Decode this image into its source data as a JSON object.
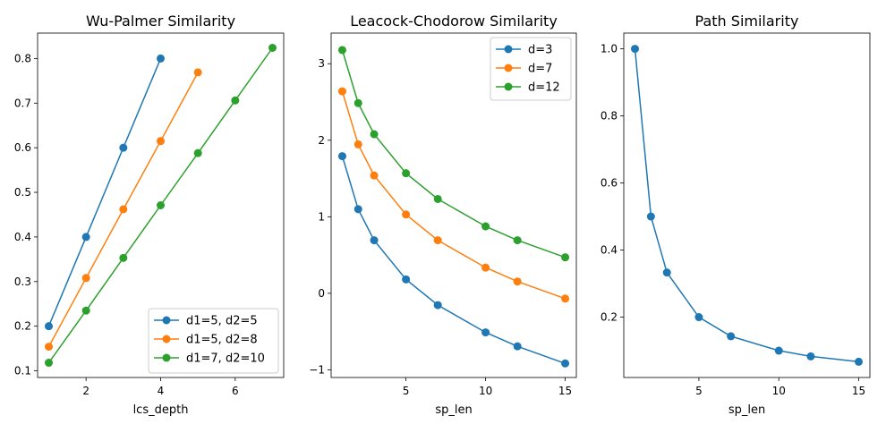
{
  "chart_data": [
    {
      "type": "line",
      "title": "Wu-Palmer Similarity",
      "xlabel": "lcs_depth",
      "ylabel": "",
      "xlim": [
        0.7,
        7.3
      ],
      "ylim": [
        0.085,
        0.857
      ],
      "xticks": [
        2,
        4,
        6
      ],
      "yticks": [
        0.1,
        0.2,
        0.3,
        0.4,
        0.5,
        0.6,
        0.7,
        0.8
      ],
      "xtick_labels": [
        "2",
        "4",
        "6"
      ],
      "ytick_labels": [
        "0.1",
        "0.2",
        "0.3",
        "0.4",
        "0.5",
        "0.6",
        "0.7",
        "0.8"
      ],
      "grid": false,
      "legend_position": "bottom-right",
      "series": [
        {
          "name": "d1=5, d2=5",
          "color": "#1f77b4",
          "x": [
            1,
            2,
            3,
            4
          ],
          "y": [
            0.2,
            0.4,
            0.6,
            0.8
          ]
        },
        {
          "name": "d1=5, d2=8",
          "color": "#ff7f0e",
          "x": [
            1,
            2,
            3,
            4,
            5
          ],
          "y": [
            0.154,
            0.308,
            0.462,
            0.615,
            0.769
          ]
        },
        {
          "name": "d1=7, d2=10",
          "color": "#2ca02c",
          "x": [
            1,
            2,
            3,
            4,
            5,
            6,
            7
          ],
          "y": [
            0.118,
            0.235,
            0.353,
            0.471,
            0.588,
            0.706,
            0.824
          ]
        }
      ]
    },
    {
      "type": "line",
      "title": "Leacock-Chodorow Similarity",
      "xlabel": "sp_len",
      "ylabel": "",
      "xlim": [
        0.3,
        15.7
      ],
      "ylim": [
        -1.1,
        3.4
      ],
      "xticks": [
        5,
        10,
        15
      ],
      "yticks": [
        -1,
        0,
        1,
        2,
        3
      ],
      "xtick_labels": [
        "5",
        "10",
        "15"
      ],
      "ytick_labels": [
        "−1",
        "0",
        "1",
        "2",
        "3"
      ],
      "grid": false,
      "legend_position": "top-right",
      "series": [
        {
          "name": "d=3",
          "color": "#1f77b4",
          "x": [
            1,
            2,
            3,
            5,
            7,
            10,
            12,
            15
          ],
          "y": [
            1.792,
            1.099,
            0.693,
            0.182,
            -0.154,
            -0.511,
            -0.693,
            -0.916
          ]
        },
        {
          "name": "d=7",
          "color": "#ff7f0e",
          "x": [
            1,
            2,
            3,
            5,
            7,
            10,
            12,
            15
          ],
          "y": [
            2.639,
            1.946,
            1.54,
            1.03,
            0.693,
            0.336,
            0.154,
            -0.069
          ]
        },
        {
          "name": "d=12",
          "color": "#2ca02c",
          "x": [
            1,
            2,
            3,
            5,
            7,
            10,
            12,
            15
          ],
          "y": [
            3.178,
            2.485,
            2.079,
            1.569,
            1.232,
            0.875,
            0.693,
            0.47
          ]
        }
      ]
    },
    {
      "type": "line",
      "title": "Path Similarity",
      "xlabel": "sp_len",
      "ylabel": "",
      "xlim": [
        0.3,
        15.7
      ],
      "ylim": [
        0.02,
        1.047
      ],
      "xticks": [
        5,
        10,
        15
      ],
      "yticks": [
        0.2,
        0.4,
        0.6,
        0.8,
        1.0
      ],
      "xtick_labels": [
        "5",
        "10",
        "15"
      ],
      "ytick_labels": [
        "0.2",
        "0.4",
        "0.6",
        "0.8",
        "1.0"
      ],
      "grid": false,
      "legend_position": "none",
      "series": [
        {
          "color": "#1f77b4",
          "x": [
            1,
            2,
            3,
            5,
            7,
            10,
            12,
            15
          ],
          "y": [
            1.0,
            0.5,
            0.333,
            0.2,
            0.143,
            0.1,
            0.083,
            0.067
          ]
        }
      ]
    }
  ]
}
